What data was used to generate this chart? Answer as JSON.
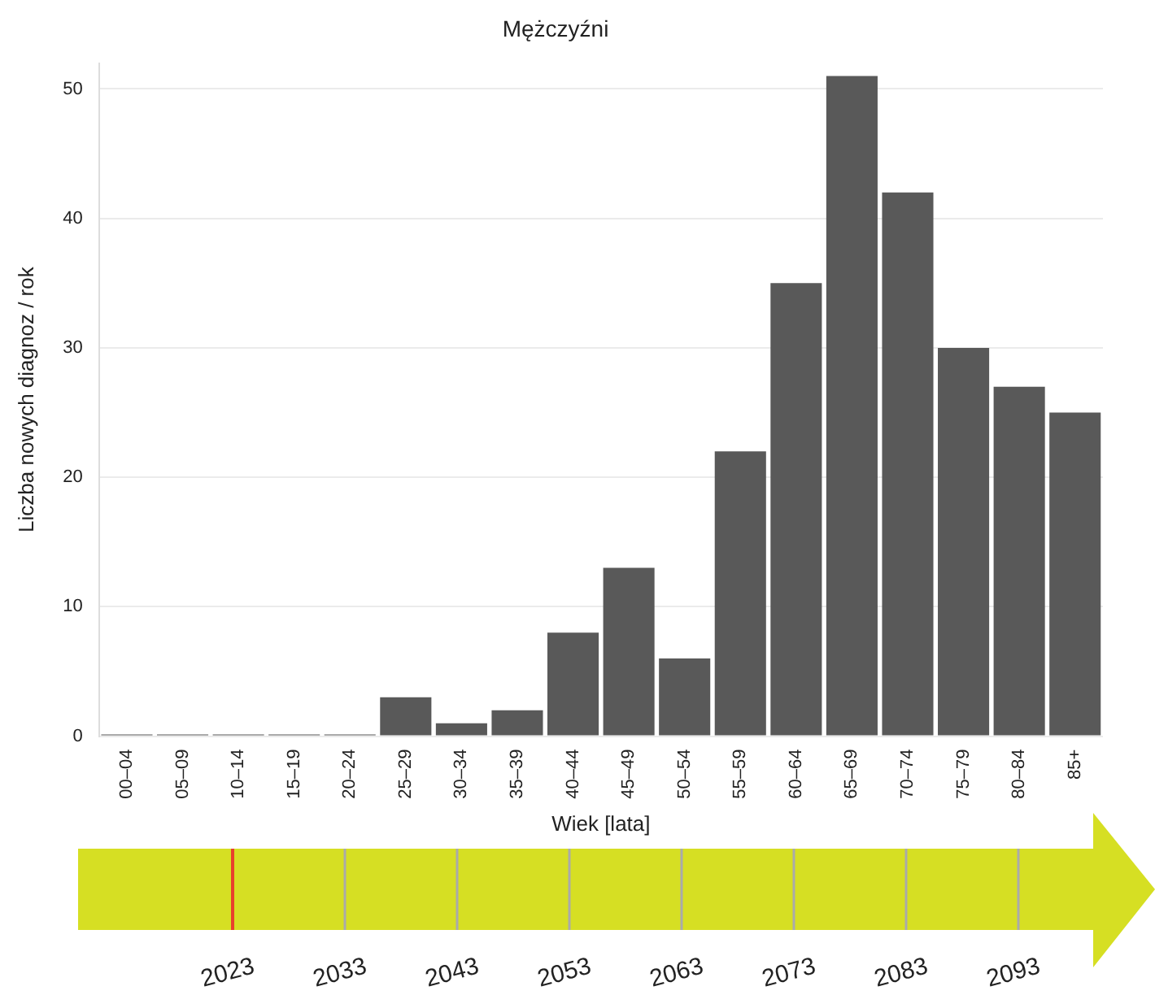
{
  "chart_data": {
    "type": "bar",
    "title": "Mężczyźni",
    "xlabel": "Wiek [lata]",
    "ylabel": "Liczba nowych diagnoz / rok",
    "categories": [
      "00–04",
      "05–09",
      "10–14",
      "15–19",
      "20–24",
      "25–29",
      "30–34",
      "35–39",
      "40–44",
      "45–49",
      "50–54",
      "55–59",
      "60–64",
      "65–69",
      "70–74",
      "75–79",
      "80–84",
      "85+"
    ],
    "values": [
      0,
      0,
      0,
      0,
      0,
      3,
      1,
      2,
      8,
      13,
      6,
      22,
      35,
      51,
      42,
      30,
      27,
      25
    ],
    "color": "#595959",
    "ylim": [
      0,
      52
    ],
    "yticks": [
      0,
      10,
      20,
      30,
      40,
      50
    ],
    "grid": "y",
    "legend": false,
    "annotations": [
      "2023",
      "2033",
      "2043",
      "2053",
      "2063",
      "2073",
      "2083",
      "2093"
    ]
  }
}
